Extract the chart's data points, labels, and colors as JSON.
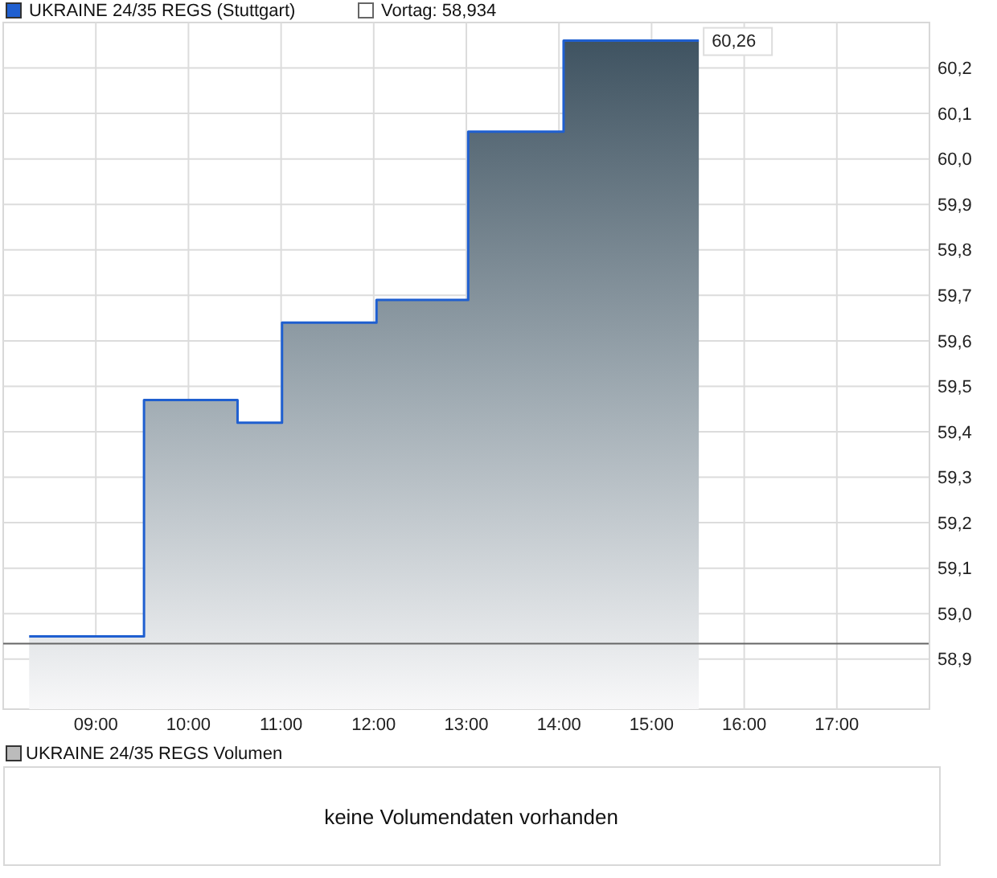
{
  "chart_data": [
    {
      "type": "area",
      "xlim": [
        8,
        18
      ],
      "ylim": [
        58.79,
        60.3
      ],
      "xticks": [
        {
          "value": 9,
          "label": "09:00"
        },
        {
          "value": 10,
          "label": "10:00"
        },
        {
          "value": 11,
          "label": "11:00"
        },
        {
          "value": 12,
          "label": "12:00"
        },
        {
          "value": 13,
          "label": "13:00"
        },
        {
          "value": 14,
          "label": "14:00"
        },
        {
          "value": 15,
          "label": "15:00"
        },
        {
          "value": 16,
          "label": "16:00"
        },
        {
          "value": 17,
          "label": "17:00"
        }
      ],
      "yticks": [
        {
          "value": 58.9,
          "label": "58,9"
        },
        {
          "value": 59,
          "label": "59,0"
        },
        {
          "value": 59.1,
          "label": "59,1"
        },
        {
          "value": 59.2,
          "label": "59,2"
        },
        {
          "value": 59.3,
          "label": "59,3"
        },
        {
          "value": 59.4,
          "label": "59,4"
        },
        {
          "value": 59.5,
          "label": "59,5"
        },
        {
          "value": 59.6,
          "label": "59,6"
        },
        {
          "value": 59.7,
          "label": "59,7"
        },
        {
          "value": 59.8,
          "label": "59,8"
        },
        {
          "value": 59.9,
          "label": "59,9"
        },
        {
          "value": 60,
          "label": "60,0"
        },
        {
          "value": 60.1,
          "label": "60,1"
        },
        {
          "value": 60.2,
          "label": "60,2"
        }
      ],
      "x": [
        8.28,
        9.52,
        9.52,
        10.53,
        10.53,
        11.01,
        11.01,
        12.03,
        12.03,
        13.02,
        13.02,
        14.05,
        14.05,
        15.51
      ],
      "series": [
        {
          "name": "UKRAINE 24/35 REGS (Stuttgart)",
          "color": "#1f5fd0",
          "values": [
            58.95,
            58.95,
            59.47,
            59.47,
            59.42,
            59.42,
            59.64,
            59.64,
            59.69,
            59.69,
            60.06,
            60.06,
            60.26,
            60.26
          ]
        }
      ],
      "ref_lines": [
        {
          "axis": "y",
          "value": 58.934,
          "label": "Vortag: 58,934",
          "color": "#666666"
        }
      ],
      "annotations": [
        {
          "text": "60,26",
          "x": 15.51,
          "y": 60.26
        }
      ],
      "grid": true,
      "legend": "top left"
    },
    {
      "type": "other",
      "title": "UKRAINE 24/35 REGS Volumen",
      "annotations": [
        "keine Volumendaten vorhanden"
      ]
    }
  ]
}
